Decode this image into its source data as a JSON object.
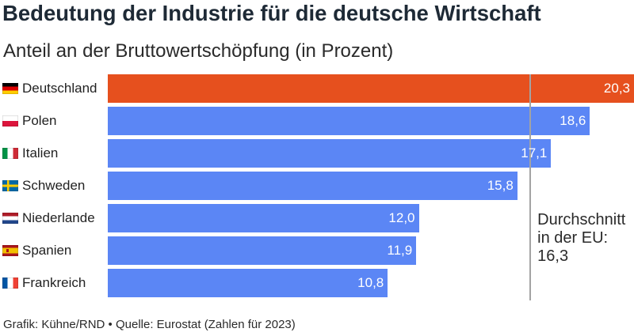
{
  "chart_data": {
    "type": "bar",
    "orientation": "horizontal",
    "title": "Bedeutung der Industrie für die deutsche Wirtschaft",
    "subtitle": "Anteil an der Bruttowertschöpfung (in Prozent)",
    "xlabel": "",
    "ylabel": "",
    "categories": [
      "Deutschland",
      "Polen",
      "Italien",
      "Schweden",
      "Niederlande",
      "Spanien",
      "Frankreich"
    ],
    "values": [
      20.3,
      18.6,
      17.1,
      15.8,
      12.0,
      11.9,
      10.8
    ],
    "data_labels": [
      "20,3",
      "18,6",
      "17,1",
      "15,8",
      "12,0",
      "11,9",
      "10,8"
    ],
    "category_icons": [
      "flag-germany-icon",
      "flag-poland-icon",
      "flag-italy-icon",
      "flag-sweden-icon",
      "flag-netherlands-icon",
      "flag-spain-icon",
      "flag-france-icon"
    ],
    "bar_colors": [
      "#E6501E",
      "#5B86F5",
      "#5B86F5",
      "#5B86F5",
      "#5B86F5",
      "#5B86F5",
      "#5B86F5"
    ],
    "xlim": [
      0,
      20.3
    ],
    "grid": false,
    "reference_line": {
      "value": 16.3,
      "color": "#A3A3A3",
      "label_lines": [
        "Durchschnitt",
        "in der EU:",
        "16,3"
      ]
    }
  },
  "footer": "Grafik: Kühne/RND • Quelle: Eurostat (Zahlen für 2023)"
}
